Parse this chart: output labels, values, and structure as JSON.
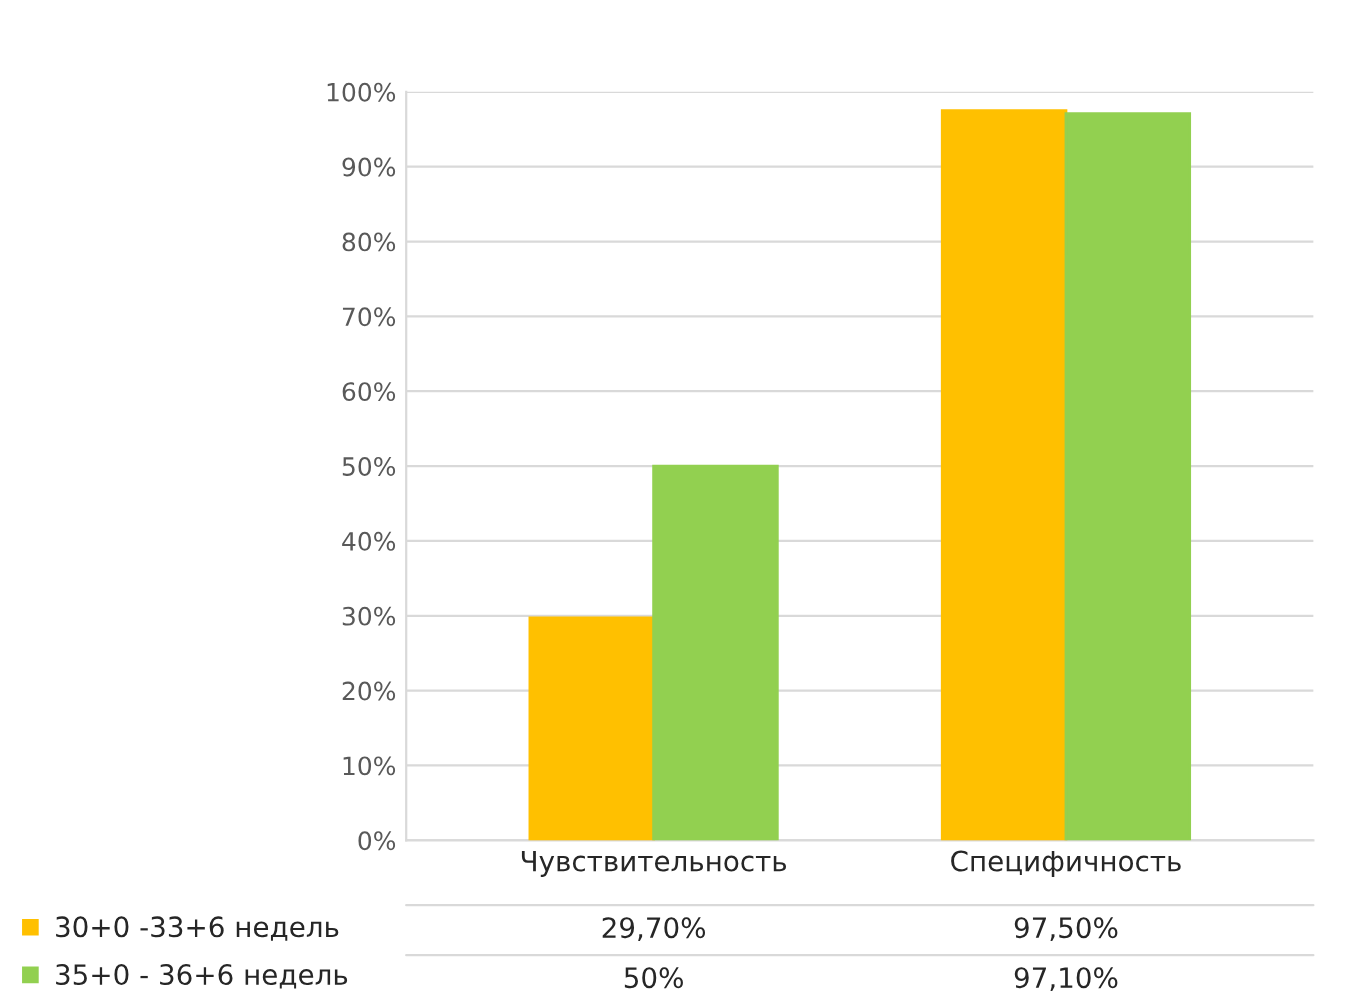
{
  "chart_data": {
    "type": "bar",
    "categories": [
      "Чувствительность",
      "Специфичность"
    ],
    "series": [
      {
        "name": "30+0 -33+6 недель",
        "color": "#ffc000",
        "values": [
          29.7,
          97.5
        ],
        "value_labels": [
          "29,70%",
          "97,50%"
        ]
      },
      {
        "name": "35+0 - 36+6 недель",
        "color": "#92d050",
        "values": [
          50,
          97.1
        ],
        "value_labels": [
          "50%",
          "97,10%"
        ]
      }
    ],
    "ylim": [
      0,
      100
    ],
    "yticks": [
      {
        "value": 0,
        "label": "0%"
      },
      {
        "value": 10,
        "label": "10%"
      },
      {
        "value": 20,
        "label": "20%"
      },
      {
        "value": 30,
        "label": "30%"
      },
      {
        "value": 40,
        "label": "40%"
      },
      {
        "value": 50,
        "label": "50%"
      },
      {
        "value": 60,
        "label": "60%"
      },
      {
        "value": 70,
        "label": "70%"
      },
      {
        "value": 80,
        "label": "80%"
      },
      {
        "value": 90,
        "label": "90%"
      },
      {
        "value": 100,
        "label": "100%"
      }
    ],
    "grid": "y",
    "legend": "bottom left"
  }
}
